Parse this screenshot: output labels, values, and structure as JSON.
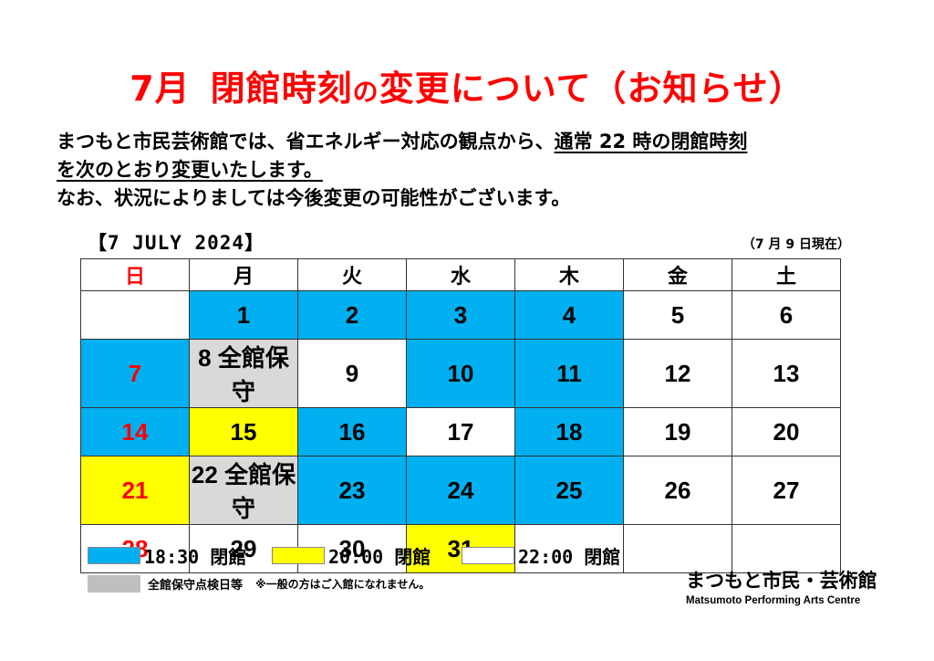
{
  "title": {
    "month": "7月",
    "main": "閉館時刻",
    "particle": "の",
    "rest": "変更について（お知らせ）"
  },
  "notice": {
    "line1_a": "まつもと市民芸術館では、省エネルギー対応の観点から、",
    "line1_b": "通常 22 時の閉館時刻",
    "line2": "を次のとおり変更いたします。",
    "line3": "なお、状況によりましては今後変更の可能性がございます。"
  },
  "calendar": {
    "heading": "【7 JULY 2024】",
    "as_of": "（7 月 9 日現在）",
    "weekdays": [
      "日",
      "月",
      "火",
      "水",
      "木",
      "金",
      "土"
    ],
    "weeks": [
      [
        {
          "label": "",
          "status": "none"
        },
        {
          "label": "1",
          "status": "18:30"
        },
        {
          "label": "2",
          "status": "18:30"
        },
        {
          "label": "3",
          "status": "18:30"
        },
        {
          "label": "4",
          "status": "18:30"
        },
        {
          "label": "5",
          "status": "22:00"
        },
        {
          "label": "6",
          "status": "22:00"
        }
      ],
      [
        {
          "label": "7",
          "status": "18:30",
          "sunday": true
        },
        {
          "label": "8  全館保守",
          "status": "maintenance"
        },
        {
          "label": "9",
          "status": "22:00"
        },
        {
          "label": "10",
          "status": "18:30"
        },
        {
          "label": "11",
          "status": "18:30"
        },
        {
          "label": "12",
          "status": "22:00"
        },
        {
          "label": "13",
          "status": "22:00"
        }
      ],
      [
        {
          "label": "14",
          "status": "18:30",
          "sunday": true
        },
        {
          "label": "15",
          "status": "20:00"
        },
        {
          "label": "16",
          "status": "18:30"
        },
        {
          "label": "17",
          "status": "22:00"
        },
        {
          "label": "18",
          "status": "18:30"
        },
        {
          "label": "19",
          "status": "22:00"
        },
        {
          "label": "20",
          "status": "22:00"
        }
      ],
      [
        {
          "label": "21",
          "status": "20:00",
          "sunday": true
        },
        {
          "label": "22 全館保守",
          "status": "maintenance"
        },
        {
          "label": "23",
          "status": "18:30"
        },
        {
          "label": "24",
          "status": "18:30"
        },
        {
          "label": "25",
          "status": "18:30"
        },
        {
          "label": "26",
          "status": "22:00"
        },
        {
          "label": "27",
          "status": "22:00"
        }
      ],
      [
        {
          "label": "28",
          "status": "22:00",
          "sunday": true
        },
        {
          "label": "29",
          "status": "22:00"
        },
        {
          "label": "30",
          "status": "22:00"
        },
        {
          "label": "31",
          "status": "20:00"
        },
        {
          "label": "",
          "status": "none"
        },
        {
          "label": "",
          "status": "none"
        },
        {
          "label": "",
          "status": "none"
        }
      ]
    ]
  },
  "legend": {
    "blue_label": "18:30 閉館",
    "yellow_label": "20:00 閉館",
    "white_label": "22:00 閉館",
    "gray_label": "全館保守点検日等",
    "gray_note": "※一般の方はご入館になれません。"
  },
  "colors": {
    "closing_1830": "#00b0f0",
    "closing_2000": "#ffff00",
    "closing_2200": "#ffffff",
    "maintenance": "#d9d9d9",
    "title_red": "#ff0000"
  },
  "logo": {
    "jp": "まつもと市民・芸術館",
    "en": "Matsumoto Performing Arts Centre"
  }
}
